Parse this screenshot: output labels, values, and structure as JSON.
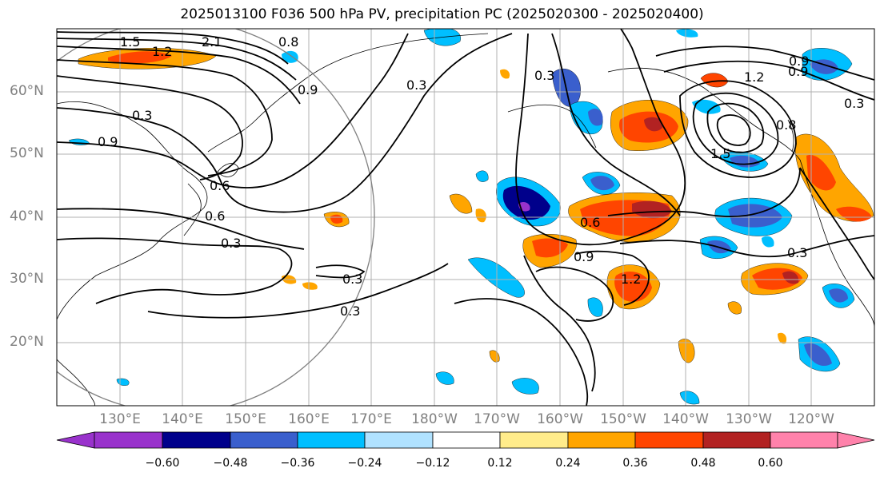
{
  "title": "2025013100 F036 500 hPa PV, precipitation PC (2025020300 - 2025020400)",
  "lat_labels": [
    "60°N",
    "50°N",
    "40°N",
    "30°N",
    "20°N"
  ],
  "lon_labels": [
    "130°E",
    "140°E",
    "150°E",
    "160°E",
    "170°E",
    "180°W",
    "170°W",
    "160°W",
    "150°W",
    "140°W",
    "130°W",
    "120°W"
  ],
  "contour_labels": [
    "1.5",
    "1.2",
    "2.1",
    "0.8",
    "0.9",
    "0.3",
    "0.3",
    "0.9",
    "0.6",
    "0.6",
    "0.3",
    "0.3",
    "0.3",
    "0.3",
    "0.6",
    "0.9",
    "1.2",
    "0.9",
    "1.2",
    "0.9",
    "0.3",
    "0.3",
    "0.8",
    "1.5"
  ],
  "colorbar": {
    "colors": [
      "#9932cc",
      "#00008b",
      "#3a5fcd",
      "#00bfff",
      "#b0e2ff",
      "#ffffff",
      "#ffec8b",
      "#ffa500",
      "#ff4500",
      "#b22222",
      "#ff82ab"
    ],
    "tick_labels": [
      "−0.60",
      "−0.48",
      "−0.36",
      "−0.24",
      "−0.12",
      "0.12",
      "0.24",
      "0.36",
      "0.48",
      "0.60"
    ]
  }
}
